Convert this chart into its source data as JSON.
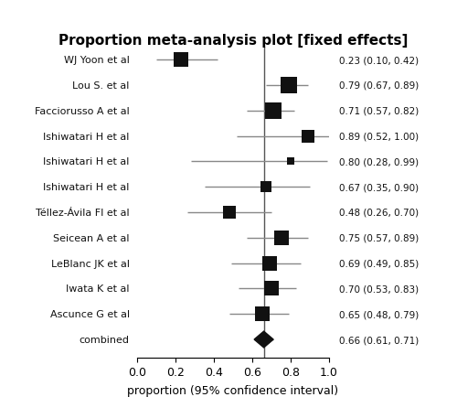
{
  "title": "Proportion meta-analysis plot [fixed effects]",
  "xlabel": "proportion (95% confidence interval)",
  "studies": [
    {
      "label": "WJ Yoon et al",
      "prop": 0.23,
      "ci_lo": 0.1,
      "ci_hi": 0.42,
      "text": "0.23 (0.10, 0.42)"
    },
    {
      "label": "Lou S. et al",
      "prop": 0.79,
      "ci_lo": 0.67,
      "ci_hi": 0.89,
      "text": "0.79 (0.67, 0.89)"
    },
    {
      "label": "Facciorusso A et al",
      "prop": 0.71,
      "ci_lo": 0.57,
      "ci_hi": 0.82,
      "text": "0.71 (0.57, 0.82)"
    },
    {
      "label": "Ishiwatari H et al",
      "prop": 0.89,
      "ci_lo": 0.52,
      "ci_hi": 1.0,
      "text": "0.89 (0.52, 1.00)"
    },
    {
      "label": "Ishiwatari H et al",
      "prop": 0.8,
      "ci_lo": 0.28,
      "ci_hi": 0.99,
      "text": "0.80 (0.28, 0.99)"
    },
    {
      "label": "Ishiwatari H et al",
      "prop": 0.67,
      "ci_lo": 0.35,
      "ci_hi": 0.9,
      "text": "0.67 (0.35, 0.90)"
    },
    {
      "label": "Téllez-Ávila FI et al",
      "prop": 0.48,
      "ci_lo": 0.26,
      "ci_hi": 0.7,
      "text": "0.48 (0.26, 0.70)"
    },
    {
      "label": "Seicean A et al",
      "prop": 0.75,
      "ci_lo": 0.57,
      "ci_hi": 0.89,
      "text": "0.75 (0.57, 0.89)"
    },
    {
      "label": "LeBlanc JK et al",
      "prop": 0.69,
      "ci_lo": 0.49,
      "ci_hi": 0.85,
      "text": "0.69 (0.49, 0.85)"
    },
    {
      "label": "Iwata K et al",
      "prop": 0.7,
      "ci_lo": 0.53,
      "ci_hi": 0.83,
      "text": "0.70 (0.53, 0.83)"
    },
    {
      "label": "Ascunce G et al",
      "prop": 0.65,
      "ci_lo": 0.48,
      "ci_hi": 0.79,
      "text": "0.65 (0.48, 0.79)"
    },
    {
      "label": "combined",
      "prop": 0.66,
      "ci_lo": 0.61,
      "ci_hi": 0.71,
      "text": "0.66 (0.61, 0.71)",
      "combined": true
    }
  ],
  "xlim": [
    0.0,
    1.0
  ],
  "xticks": [
    0.0,
    0.2,
    0.4,
    0.6,
    0.8,
    1.0
  ],
  "xticklabels": [
    "0.0",
    "0.2",
    "0.4",
    "0.6",
    "0.8",
    "1.0"
  ],
  "vline_x": 0.66,
  "square_color": "#111111",
  "line_color": "#888888",
  "text_color": "#111111",
  "bg_color": "#ffffff",
  "title_fontsize": 11,
  "label_fontsize": 8,
  "ci_text_fontsize": 7.5,
  "xlabel_fontsize": 9
}
